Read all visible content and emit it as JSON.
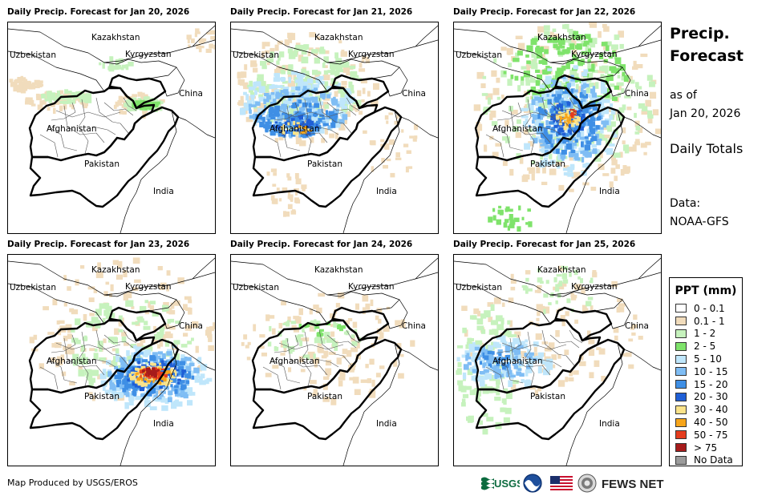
{
  "panels": [
    {
      "title": "Daily Precip. Forecast for Jan 20, 2026",
      "precip": "p1"
    },
    {
      "title": "Daily Precip. Forecast for Jan 21, 2026",
      "precip": "p2"
    },
    {
      "title": "Daily Precip. Forecast for Jan 22, 2026",
      "precip": "p3"
    },
    {
      "title": "Daily Precip. Forecast for Jan 23, 2026",
      "precip": "p4"
    },
    {
      "title": "Daily Precip. Forecast for Jan 24, 2026",
      "precip": "p5"
    },
    {
      "title": "Daily Precip. Forecast for Jan 25, 2026",
      "precip": "p6"
    }
  ],
  "map_labels": {
    "kazakhstan": "Kazakhstan",
    "uzbekistan": "Uzbekistan",
    "kyrgyzstan": "Kyrgyzstan",
    "china": "China",
    "afghanistan": "Afghanistan",
    "pakistan": "Pakistan",
    "india": "India"
  },
  "sidebar": {
    "title_line1": "Precip.",
    "title_line2": "Forecast",
    "asof_line1": "as of",
    "asof_line2": "Jan 20, 2026",
    "totals": "Daily Totals",
    "data_line1": "Data:",
    "data_line2": "NOAA-GFS"
  },
  "legend": {
    "title": "PPT (mm)",
    "items": [
      {
        "label": "0 - 0.1",
        "color": "#ffffff"
      },
      {
        "label": "0.1 - 1",
        "color": "#f1dcbc"
      },
      {
        "label": "1 - 2",
        "color": "#c6f2bd"
      },
      {
        "label": "2 - 5",
        "color": "#7fe36b"
      },
      {
        "label": "5 - 10",
        "color": "#bfe6fb"
      },
      {
        "label": "10 - 15",
        "color": "#7fbdf4"
      },
      {
        "label": "15 - 20",
        "color": "#3f8fe5"
      },
      {
        "label": "20 - 30",
        "color": "#1f5fd6"
      },
      {
        "label": "30 - 40",
        "color": "#fbe38a"
      },
      {
        "label": "40 - 50",
        "color": "#f7a51a"
      },
      {
        "label": "50 - 75",
        "color": "#e43c1e"
      },
      {
        "label": "> 75",
        "color": "#a61b1b"
      },
      {
        "label": "No Data",
        "color": "#9b9b9b"
      }
    ]
  },
  "credit": "Map Produced by USGS/EROS",
  "logos": {
    "usgs": "USGS",
    "fews": "FEWS NET"
  }
}
